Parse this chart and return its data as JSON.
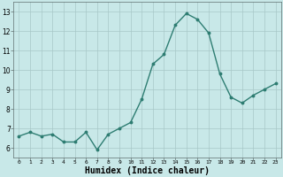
{
  "x": [
    0,
    1,
    2,
    3,
    4,
    5,
    6,
    7,
    8,
    9,
    10,
    11,
    12,
    13,
    14,
    15,
    16,
    17,
    18,
    19,
    20,
    21,
    22,
    23
  ],
  "y": [
    6.6,
    6.8,
    6.6,
    6.7,
    6.3,
    6.3,
    6.8,
    5.9,
    6.7,
    7.0,
    7.3,
    8.5,
    10.3,
    10.8,
    12.3,
    12.9,
    12.6,
    11.9,
    9.8,
    8.6,
    8.3,
    8.7,
    9.0,
    9.3
  ],
  "line_color": "#2e7d72",
  "marker": "o",
  "marker_size": 1.8,
  "line_width": 1.0,
  "bg_color": "#c8e8e8",
  "grid_color": "#a8c8c8",
  "xlabel": "Humidex (Indice chaleur)",
  "xlabel_fontsize": 7,
  "ytick_labels": [
    6,
    7,
    8,
    9,
    10,
    11,
    12,
    13
  ],
  "xtick_labels": [
    0,
    1,
    2,
    3,
    4,
    5,
    6,
    7,
    8,
    9,
    10,
    11,
    12,
    13,
    14,
    15,
    16,
    17,
    18,
    19,
    20,
    21,
    22,
    23
  ],
  "ylim": [
    5.5,
    13.5
  ],
  "xlim": [
    -0.5,
    23.5
  ]
}
